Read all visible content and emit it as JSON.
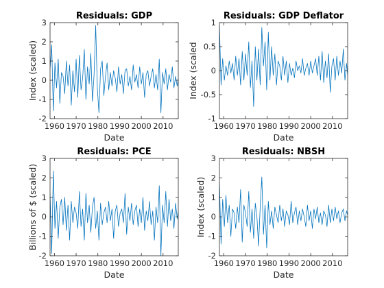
{
  "figure": {
    "background": "#ffffff",
    "line_color": "#0072BD",
    "axis_color": "#262626"
  },
  "chart_data": [
    {
      "type": "line",
      "title": "Residuals: GDP",
      "xlabel": "Date",
      "ylabel": "Index (scaled)",
      "xlim": [
        1958,
        2017
      ],
      "ylim": [
        -2,
        3
      ],
      "xticks": [
        1960,
        1970,
        1980,
        1990,
        2000,
        2010
      ],
      "yticks": [
        -2,
        -1,
        0,
        1,
        2,
        3
      ],
      "grid": false,
      "series": [
        {
          "x": [
            1958.0,
            1958.75,
            1959.5,
            1960.25,
            1961.0,
            1961.75,
            1962.5,
            1963.25,
            1964.0,
            1964.75,
            1965.5,
            1966.25,
            1967.0,
            1967.75,
            1968.5,
            1969.25,
            1970.0,
            1970.75,
            1971.5,
            1972.25,
            1973.0,
            1973.75,
            1974.5,
            1975.25,
            1976.0,
            1976.75,
            1977.5,
            1978.25,
            1979.0,
            1979.75,
            1980.5,
            1981.25,
            1982.0,
            1982.75,
            1983.5,
            1984.25,
            1985.0,
            1985.75,
            1986.5,
            1987.25,
            1988.0,
            1988.75,
            1989.5,
            1990.25,
            1991.0,
            1991.75,
            1992.5,
            1993.25,
            1994.0,
            1994.75,
            1995.5,
            1996.25,
            1997.0,
            1997.75,
            1998.5,
            1999.25,
            2000.0,
            2000.75,
            2001.5,
            2002.25,
            2003.0,
            2003.75,
            2004.5,
            2005.25,
            2006.0,
            2006.75,
            2007.5,
            2008.25,
            2009.0,
            2009.75,
            2010.5,
            2011.25,
            2012.0,
            2012.75,
            2013.5,
            2014.25,
            2015.0,
            2015.75,
            2016.5,
            2017.0
          ],
          "y": [
            0.6,
            1.85,
            -1.6,
            0.9,
            -0.4,
            1.1,
            -1.2,
            0.4,
            0.2,
            -0.7,
            1.0,
            -0.3,
            0.8,
            -1.3,
            0.5,
            -0.6,
            1.1,
            -0.9,
            1.3,
            -0.5,
            0.1,
            1.6,
            -1.0,
            0.7,
            -0.2,
            1.4,
            -1.1,
            0.3,
            2.85,
            -0.4,
            -1.7,
            0.6,
            1.0,
            -0.8,
            0.2,
            0.9,
            -0.5,
            0.4,
            -0.3,
            0.5,
            0.1,
            -0.6,
            0.7,
            -0.2,
            0.3,
            -0.7,
            0.5,
            0.6,
            -0.3,
            0.2,
            -0.5,
            0.8,
            -0.1,
            0.3,
            -0.4,
            0.7,
            -0.2,
            0.4,
            -0.9,
            0.3,
            0.5,
            -0.3,
            0.2,
            0.6,
            -0.4,
            0.3,
            -0.5,
            1.1,
            -1.7,
            0.4,
            -0.2,
            0.6,
            -0.5,
            0.3,
            -0.1,
            0.7,
            -0.4,
            0.2,
            -0.3,
            0.1
          ]
        }
      ]
    },
    {
      "type": "line",
      "title": "Residuals: GDP Deflator",
      "xlabel": "Date",
      "ylabel": "Index (scaled",
      "xlim": [
        1958,
        2017
      ],
      "ylim": [
        -1,
        1
      ],
      "xticks": [
        1960,
        1970,
        1980,
        1990,
        2000,
        2010
      ],
      "yticks": [
        -1,
        -0.5,
        0,
        0.5,
        1
      ],
      "grid": false,
      "series": [
        {
          "x": [
            1958.0,
            1958.75,
            1959.5,
            1960.25,
            1961.0,
            1961.75,
            1962.5,
            1963.25,
            1964.0,
            1964.75,
            1965.5,
            1966.25,
            1967.0,
            1967.75,
            1968.5,
            1969.25,
            1970.0,
            1970.75,
            1971.5,
            1972.25,
            1973.0,
            1973.75,
            1974.5,
            1975.25,
            1976.0,
            1976.75,
            1977.5,
            1978.25,
            1979.0,
            1979.75,
            1980.5,
            1981.25,
            1982.0,
            1982.75,
            1983.5,
            1984.25,
            1985.0,
            1985.75,
            1986.5,
            1987.25,
            1988.0,
            1988.75,
            1989.5,
            1990.25,
            1991.0,
            1991.75,
            1992.5,
            1993.25,
            1994.0,
            1994.75,
            1995.5,
            1996.25,
            1997.0,
            1997.75,
            1998.5,
            1999.25,
            2000.0,
            2000.75,
            2001.5,
            2002.25,
            2003.0,
            2003.75,
            2004.5,
            2005.25,
            2006.0,
            2006.75,
            2007.5,
            2008.25,
            2009.0,
            2009.75,
            2010.5,
            2011.25,
            2012.0,
            2012.75,
            2013.5,
            2014.25,
            2015.0,
            2015.75,
            2016.5,
            2017.0
          ],
          "y": [
            0.95,
            -0.3,
            0.25,
            -0.2,
            0.1,
            -0.1,
            0.2,
            -0.05,
            0.15,
            -0.2,
            0.3,
            -0.1,
            0.25,
            -0.3,
            0.4,
            -0.2,
            0.35,
            -0.1,
            0.6,
            -0.35,
            0.2,
            -0.75,
            0.5,
            -0.2,
            0.45,
            -0.3,
            0.9,
            0.1,
            0.6,
            -0.4,
            0.8,
            -0.2,
            0.5,
            -0.1,
            0.35,
            -0.3,
            0.2,
            0.1,
            -0.2,
            0.3,
            -0.1,
            0.2,
            -0.25,
            0.15,
            -0.1,
            0.05,
            -0.15,
            0.2,
            0.0,
            0.1,
            -0.05,
            0.25,
            -0.1,
            0.05,
            0.15,
            -0.1,
            0.2,
            -0.05,
            0.1,
            0.25,
            -0.1,
            0.3,
            -0.2,
            0.4,
            -0.25,
            0.2,
            -0.15,
            0.35,
            -0.45,
            0.1,
            0.25,
            -0.2,
            0.3,
            -0.1,
            0.2,
            -0.05,
            0.45,
            -0.2,
            0.15,
            -0.1
          ]
        }
      ]
    },
    {
      "type": "line",
      "title": "Residuals: PCE",
      "xlabel": "Date",
      "ylabel": "Billions of $ (scaled)",
      "xlim": [
        1958,
        2017
      ],
      "ylim": [
        -2,
        3
      ],
      "xticks": [
        1960,
        1970,
        1980,
        1990,
        2000,
        2010
      ],
      "yticks": [
        -2,
        -1,
        0,
        1,
        2,
        3
      ],
      "grid": false,
      "series": [
        {
          "x": [
            1958.0,
            1958.75,
            1959.5,
            1960.25,
            1961.0,
            1961.75,
            1962.5,
            1963.25,
            1964.0,
            1964.75,
            1965.5,
            1966.25,
            1967.0,
            1967.75,
            1968.5,
            1969.25,
            1970.0,
            1970.75,
            1971.5,
            1972.25,
            1973.0,
            1973.75,
            1974.5,
            1975.25,
            1976.0,
            1976.75,
            1977.5,
            1978.25,
            1979.0,
            1979.75,
            1980.5,
            1981.25,
            1982.0,
            1982.75,
            1983.5,
            1984.25,
            1985.0,
            1985.75,
            1986.5,
            1987.25,
            1988.0,
            1988.75,
            1989.5,
            1990.25,
            1991.0,
            1991.75,
            1992.5,
            1993.25,
            1994.0,
            1994.75,
            1995.5,
            1996.25,
            1997.0,
            1997.75,
            1998.5,
            1999.25,
            2000.0,
            2000.75,
            2001.5,
            2002.25,
            2003.0,
            2003.75,
            2004.5,
            2005.25,
            2006.0,
            2006.75,
            2007.5,
            2008.25,
            2009.0,
            2009.75,
            2010.5,
            2011.25,
            2012.0,
            2012.75,
            2013.5,
            2014.25,
            2015.0,
            2015.75,
            2016.5,
            2017.0
          ],
          "y": [
            1.2,
            -1.9,
            2.35,
            -0.6,
            0.8,
            -1.1,
            0.5,
            0.9,
            -0.4,
            1.0,
            -0.7,
            0.6,
            -1.2,
            0.8,
            -0.3,
            0.5,
            0.2,
            -0.6,
            1.3,
            -0.5,
            0.4,
            -1.2,
            1.2,
            -0.3,
            0.6,
            -0.8,
            0.5,
            1.0,
            -0.6,
            0.3,
            -1.2,
            0.7,
            -0.4,
            0.2,
            0.5,
            -0.3,
            0.8,
            -0.2,
            0.4,
            -1.1,
            0.3,
            0.6,
            -0.5,
            0.2,
            0.4,
            -0.3,
            1.2,
            -0.9,
            0.5,
            -0.2,
            0.7,
            -0.4,
            0.3,
            0.6,
            -0.5,
            0.4,
            -0.3,
            1.0,
            -0.7,
            0.3,
            -0.2,
            0.8,
            -0.4,
            0.3,
            -1.2,
            0.5,
            -0.3,
            1.6,
            -2.0,
            0.6,
            -0.3,
            1.3,
            -0.5,
            0.9,
            -0.2,
            0.4,
            -0.6,
            0.7,
            -0.1,
            0.3
          ]
        }
      ]
    },
    {
      "type": "line",
      "title": "Residuals: NBSH",
      "xlabel": "Date",
      "ylabel": "Index (scaled)",
      "xlim": [
        1958,
        2017
      ],
      "ylim": [
        -2,
        3
      ],
      "xticks": [
        1960,
        1970,
        1980,
        1990,
        2000,
        2010
      ],
      "yticks": [
        -2,
        -1,
        0,
        1,
        2,
        3
      ],
      "grid": false,
      "series": [
        {
          "x": [
            1958.0,
            1958.75,
            1959.5,
            1960.25,
            1961.0,
            1961.75,
            1962.5,
            1963.25,
            1964.0,
            1964.75,
            1965.5,
            1966.25,
            1967.0,
            1967.75,
            1968.5,
            1969.25,
            1970.0,
            1970.75,
            1971.5,
            1972.25,
            1973.0,
            1973.75,
            1974.5,
            1975.25,
            1976.0,
            1976.75,
            1977.5,
            1978.25,
            1979.0,
            1979.75,
            1980.5,
            1981.25,
            1982.0,
            1982.75,
            1983.5,
            1984.25,
            1985.0,
            1985.75,
            1986.5,
            1987.25,
            1988.0,
            1988.75,
            1989.5,
            1990.25,
            1991.0,
            1991.75,
            1992.5,
            1993.25,
            1994.0,
            1994.75,
            1995.5,
            1996.25,
            1997.0,
            1997.75,
            1998.5,
            1999.25,
            2000.0,
            2000.75,
            2001.5,
            2002.25,
            2003.0,
            2003.75,
            2004.5,
            2005.25,
            2006.0,
            2006.75,
            2007.5,
            2008.25,
            2009.0,
            2009.75,
            2010.5,
            2011.25,
            2012.0,
            2012.75,
            2013.5,
            2014.25,
            2015.0,
            2015.75,
            2016.5,
            2017.0
          ],
          "y": [
            1.8,
            -1.4,
            0.9,
            -0.5,
            1.1,
            -0.3,
            0.6,
            -1.0,
            0.4,
            0.2,
            -0.6,
            0.5,
            -0.3,
            1.4,
            -1.3,
            0.6,
            0.2,
            -0.5,
            1.3,
            -0.8,
            0.4,
            -1.1,
            0.7,
            0.0,
            -1.5,
            0.5,
            2.05,
            -0.9,
            0.6,
            -1.6,
            0.8,
            -0.4,
            0.3,
            -0.6,
            0.5,
            0.1,
            -0.3,
            0.6,
            -0.2,
            0.4,
            -0.5,
            0.3,
            0.1,
            -0.4,
            0.8,
            -0.3,
            0.2,
            0.5,
            -0.4,
            0.3,
            -0.2,
            0.4,
            0.0,
            -0.5,
            0.6,
            -0.2,
            0.3,
            -0.6,
            0.4,
            -0.1,
            0.5,
            -0.3,
            0.2,
            -0.4,
            0.3,
            0.1,
            -0.5,
            0.6,
            -0.3,
            0.4,
            -0.2,
            0.5,
            -0.1,
            0.3,
            -0.3,
            0.2,
            0.4,
            -0.2,
            0.3,
            0.1
          ]
        }
      ]
    }
  ]
}
